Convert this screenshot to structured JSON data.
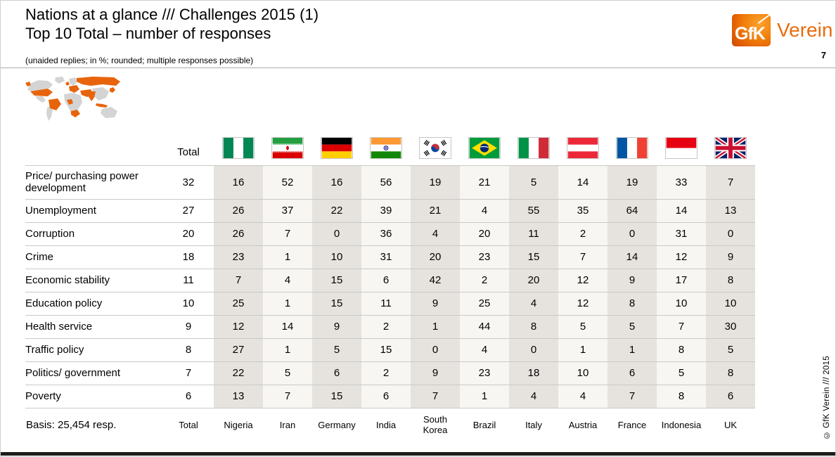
{
  "slide": {
    "title_line1": "Nations at a glance /// Challenges 2015 (1)",
    "title_line2": "Top 10 Total – number of responses",
    "subtitle": "(unaided replies; in %; rounded; multiple responses possible)",
    "page_number": "7",
    "copyright_vertical": "© GfK Verein /// 2015"
  },
  "logo": {
    "brand": "GfK",
    "org": "Verein",
    "orange": "#ec6608"
  },
  "map": {
    "base_color": "#d4d4d4",
    "highlight_color": "#e8640c"
  },
  "chart_data": {
    "type": "table",
    "title": "Nations at a glance /// Challenges 2015 (1) — Top 10 Total – number of responses",
    "note": "(unaided replies; in %; rounded; multiple responses possible)",
    "columns": [
      "Total",
      "Nigeria",
      "Iran",
      "Germany",
      "India",
      "South Korea",
      "Brazil",
      "Italy",
      "Austria",
      "France",
      "Indonesia",
      "UK"
    ],
    "flags": [
      "nigeria",
      "iran",
      "germany",
      "india",
      "south-korea",
      "brazil",
      "italy",
      "austria",
      "france",
      "indonesia",
      "uk"
    ],
    "rows": [
      {
        "label": "Price/ purchasing power development",
        "values": [
          32,
          16,
          52,
          16,
          56,
          19,
          21,
          5,
          14,
          19,
          33,
          7
        ]
      },
      {
        "label": "Unemployment",
        "values": [
          27,
          26,
          37,
          22,
          39,
          21,
          4,
          55,
          35,
          64,
          14,
          13
        ]
      },
      {
        "label": "Corruption",
        "values": [
          20,
          26,
          7,
          0,
          36,
          4,
          20,
          11,
          2,
          0,
          31,
          0
        ]
      },
      {
        "label": "Crime",
        "values": [
          18,
          23,
          1,
          10,
          31,
          20,
          23,
          15,
          7,
          14,
          12,
          9
        ]
      },
      {
        "label": "Economic stability",
        "values": [
          11,
          7,
          4,
          15,
          6,
          42,
          2,
          20,
          12,
          9,
          17,
          8
        ]
      },
      {
        "label": "Education policy",
        "values": [
          10,
          25,
          1,
          15,
          11,
          9,
          25,
          4,
          12,
          8,
          10,
          10
        ]
      },
      {
        "label": "Health service",
        "values": [
          9,
          12,
          14,
          9,
          2,
          1,
          44,
          8,
          5,
          5,
          7,
          30
        ]
      },
      {
        "label": "Traffic policy",
        "values": [
          8,
          27,
          1,
          5,
          15,
          0,
          4,
          0,
          1,
          1,
          8,
          5
        ]
      },
      {
        "label": "Politics/ government",
        "values": [
          7,
          22,
          5,
          6,
          2,
          9,
          23,
          18,
          10,
          6,
          5,
          8
        ]
      },
      {
        "label": "Poverty",
        "values": [
          6,
          13,
          7,
          15,
          6,
          7,
          1,
          4,
          4,
          7,
          8,
          6
        ]
      }
    ],
    "basis": "Basis: 25,454 resp."
  }
}
